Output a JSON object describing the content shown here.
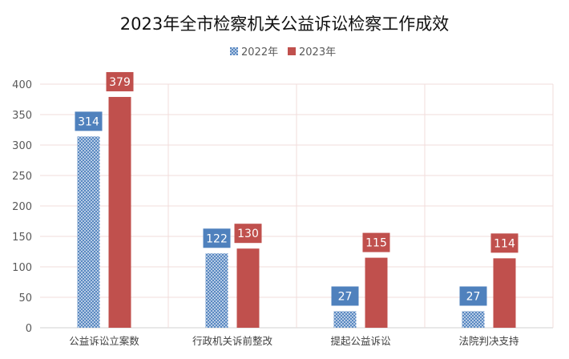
{
  "chart_data": {
    "type": "bar",
    "title": "2023年全市检察机关公益诉讼检察工作成效",
    "categories": [
      "公益诉讼立案数",
      "行政机关诉前整改",
      "提起公益诉讼",
      "法院判决支持"
    ],
    "series": [
      {
        "name": "2022年",
        "values": [
          314,
          122,
          27,
          27
        ],
        "color": "#4f81bd",
        "pattern": "crosshatch"
      },
      {
        "name": "2023年",
        "values": [
          379,
          130,
          115,
          114
        ],
        "color": "#c0504d",
        "pattern": "solid"
      }
    ],
    "ylim": [
      0,
      400
    ],
    "yticks": [
      0,
      50,
      100,
      150,
      200,
      250,
      300,
      350,
      400
    ],
    "grid": true,
    "legend_position": "top-center",
    "data_labels": true
  }
}
